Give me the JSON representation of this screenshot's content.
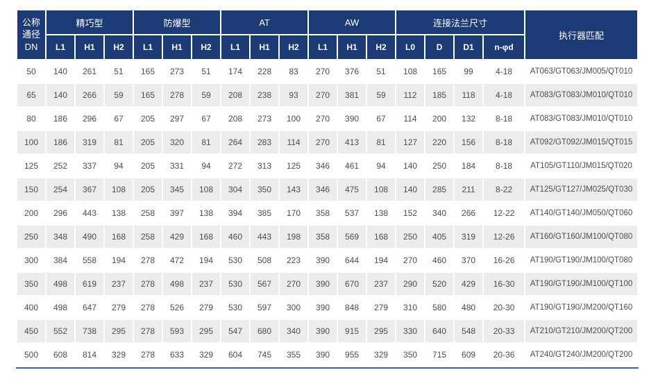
{
  "colors": {
    "header_bg": "#1b3a76",
    "header_text": "#ffffff",
    "row_alt_bg": "#ececec",
    "row_text": "#4d4d4d",
    "bottom_rule": "#3c5eb5"
  },
  "table": {
    "dn_header": "公称\n通径\nDN",
    "groups": [
      {
        "label": "精巧型",
        "cols": [
          "L1",
          "H1",
          "H2"
        ]
      },
      {
        "label": "防爆型",
        "cols": [
          "L1",
          "H1",
          "H2"
        ]
      },
      {
        "label": "AT",
        "cols": [
          "L1",
          "H1",
          "H2"
        ]
      },
      {
        "label": "AW",
        "cols": [
          "L1",
          "H1",
          "H2"
        ]
      },
      {
        "label": "连接法兰尺寸",
        "cols": [
          "L0",
          "D",
          "D1",
          "n-φd"
        ]
      }
    ],
    "actuator_header": "执行器匹配",
    "rows": [
      [
        "50",
        "140",
        "261",
        "51",
        "165",
        "273",
        "51",
        "174",
        "228",
        "83",
        "270",
        "376",
        "51",
        "108",
        "165",
        "99",
        "4-18",
        "AT063/GT063/JM005/QT010"
      ],
      [
        "65",
        "140",
        "266",
        "59",
        "165",
        "278",
        "59",
        "208",
        "238",
        "93",
        "270",
        "381",
        "59",
        "112",
        "185",
        "118",
        "4-18",
        "AT083/GT083/JM010/QT010"
      ],
      [
        "80",
        "186",
        "296",
        "67",
        "205",
        "297",
        "67",
        "208",
        "273",
        "100",
        "270",
        "390",
        "67",
        "114",
        "200",
        "132",
        "8-18",
        "AT083/GT083/JM010/QT010"
      ],
      [
        "100",
        "186",
        "319",
        "81",
        "205",
        "320",
        "81",
        "264",
        "283",
        "114",
        "270",
        "413",
        "81",
        "127",
        "220",
        "156",
        "8-18",
        "AT092/GT092/JM015/QT015"
      ],
      [
        "125",
        "252",
        "337",
        "94",
        "205",
        "331",
        "94",
        "272",
        "313",
        "125",
        "346",
        "461",
        "94",
        "140",
        "250",
        "184",
        "8-18",
        "AT105/GT110/JM015/QT020"
      ],
      [
        "150",
        "254",
        "367",
        "108",
        "205",
        "345",
        "108",
        "304",
        "350",
        "143",
        "346",
        "475",
        "108",
        "140",
        "285",
        "211",
        "8-22",
        "AT125/GT127/JM025/QT030"
      ],
      [
        "200",
        "296",
        "443",
        "138",
        "258",
        "397",
        "138",
        "394",
        "385",
        "170",
        "358",
        "537",
        "138",
        "152",
        "340",
        "266",
        "12-22",
        "AT140/GT140/JM050/QT060"
      ],
      [
        "250",
        "348",
        "490",
        "168",
        "258",
        "429",
        "168",
        "460",
        "443",
        "198",
        "358",
        "569",
        "168",
        "250",
        "405",
        "319",
        "12-26",
        "AT160/GT160/JM100/QT080"
      ],
      [
        "300",
        "384",
        "558",
        "194",
        "278",
        "472",
        "194",
        "530",
        "508",
        "223",
        "390",
        "644",
        "194",
        "270",
        "460",
        "370",
        "16-26",
        "AT190/GT190/JM100/QT080"
      ],
      [
        "350",
        "498",
        "619",
        "237",
        "278",
        "498",
        "237",
        "530",
        "567",
        "270",
        "390",
        "670",
        "237",
        "290",
        "520",
        "429",
        "16-30",
        "AT190/GT190/JM100/QT100"
      ],
      [
        "400",
        "498",
        "647",
        "279",
        "278",
        "526",
        "279",
        "530",
        "597",
        "300",
        "390",
        "848",
        "279",
        "310",
        "580",
        "480",
        "20-30",
        "AT190/GT190/JM200/QT160"
      ],
      [
        "450",
        "552",
        "738",
        "295",
        "278",
        "593",
        "295",
        "547",
        "680",
        "340",
        "390",
        "915",
        "295",
        "330",
        "640",
        "548",
        "20-33",
        "AT210/GT210/JM200/QT200"
      ],
      [
        "500",
        "608",
        "814",
        "329",
        "278",
        "633",
        "329",
        "604",
        "745",
        "355",
        "390",
        "955",
        "329",
        "350",
        "715",
        "609",
        "20-36",
        "AT240/GT240/JM200/QT200"
      ]
    ]
  }
}
